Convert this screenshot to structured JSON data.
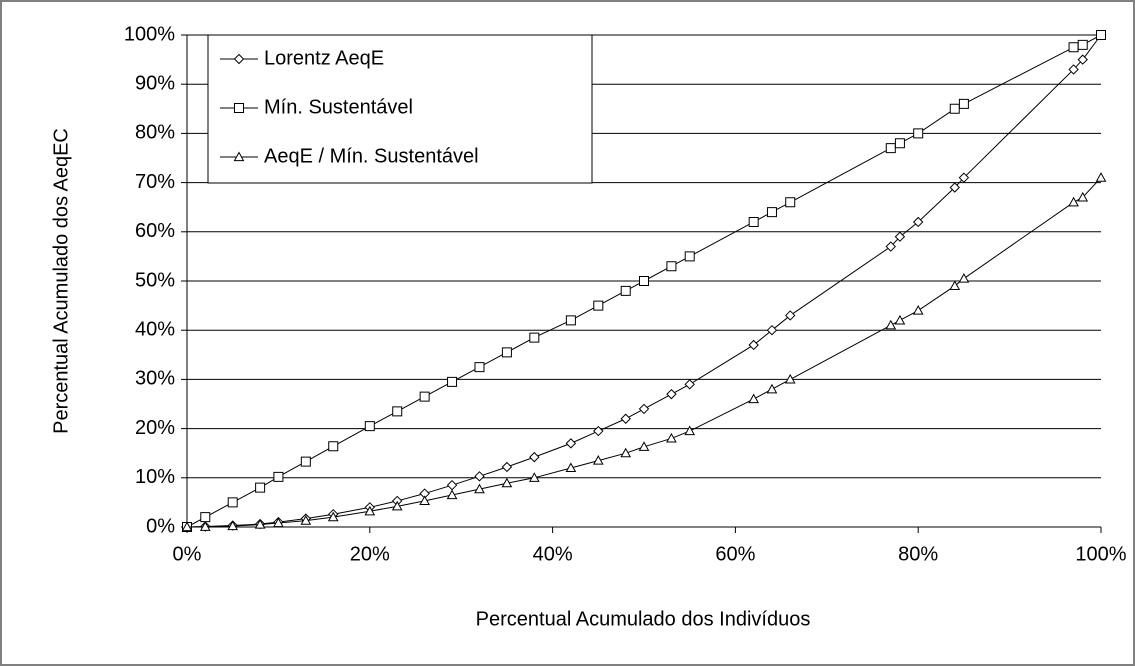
{
  "chart_data": {
    "type": "line",
    "xlabel": "Percentual Acumulado dos Indivíduos",
    "ylabel": "Percentual Acumulado dos AeqEC",
    "x": [
      0,
      2,
      5,
      8,
      10,
      13,
      16,
      20,
      23,
      26,
      29,
      32,
      35,
      38,
      42,
      45,
      48,
      50,
      53,
      55,
      62,
      64,
      66,
      77,
      78,
      80,
      84,
      85,
      97,
      98,
      100
    ],
    "series": [
      {
        "name": "Lorentz AeqE",
        "color": "#000000",
        "marker": "diamond",
        "values": [
          0,
          0.1,
          0.3,
          0.6,
          1,
          1.7,
          2.6,
          4,
          5.3,
          6.8,
          8.5,
          10.3,
          12.2,
          14.2,
          17,
          19.5,
          22,
          24,
          27,
          29,
          37,
          40,
          43,
          57,
          59,
          62,
          69,
          71,
          93,
          95,
          100
        ]
      },
      {
        "name": "Mín. Sustentável",
        "color": "#000000",
        "marker": "square",
        "values": [
          0,
          2,
          5,
          8,
          10.2,
          13.3,
          16.4,
          20.5,
          23.5,
          26.5,
          29.5,
          32.5,
          35.5,
          38.5,
          42,
          45,
          48,
          50,
          53,
          55,
          62,
          64,
          66,
          77,
          78,
          80,
          85,
          86,
          97.5,
          98,
          100
        ]
      },
      {
        "name": "AeqE / Mín. Sustentável",
        "color": "#000000",
        "marker": "triangle",
        "values": [
          0,
          0.05,
          0.2,
          0.5,
          0.8,
          1.3,
          2,
          3.2,
          4.2,
          5.3,
          6.5,
          7.7,
          8.9,
          10,
          12,
          13.5,
          15,
          16.3,
          18,
          19.5,
          26,
          28,
          30,
          41,
          42,
          44,
          49,
          50.5,
          66,
          67,
          71
        ]
      }
    ],
    "xlim": [
      0,
      100
    ],
    "ylim": [
      0,
      100
    ],
    "xticks": [
      {
        "value": 0,
        "label": "0%"
      },
      {
        "value": 20,
        "label": "20%"
      },
      {
        "value": 40,
        "label": "40%"
      },
      {
        "value": 60,
        "label": "60%"
      },
      {
        "value": 80,
        "label": "80%"
      },
      {
        "value": 100,
        "label": "100%"
      }
    ],
    "yticks": [
      {
        "value": 0,
        "label": "0%"
      },
      {
        "value": 10,
        "label": "10%"
      },
      {
        "value": 20,
        "label": "20%"
      },
      {
        "value": 30,
        "label": "30%"
      },
      {
        "value": 40,
        "label": "40%"
      },
      {
        "value": 50,
        "label": "50%"
      },
      {
        "value": 60,
        "label": "60%"
      },
      {
        "value": 70,
        "label": "70%"
      },
      {
        "value": 80,
        "label": "80%"
      },
      {
        "value": 90,
        "label": "90%"
      },
      {
        "value": 100,
        "label": "100%"
      }
    ],
    "grid": true,
    "legend": "top-left"
  }
}
